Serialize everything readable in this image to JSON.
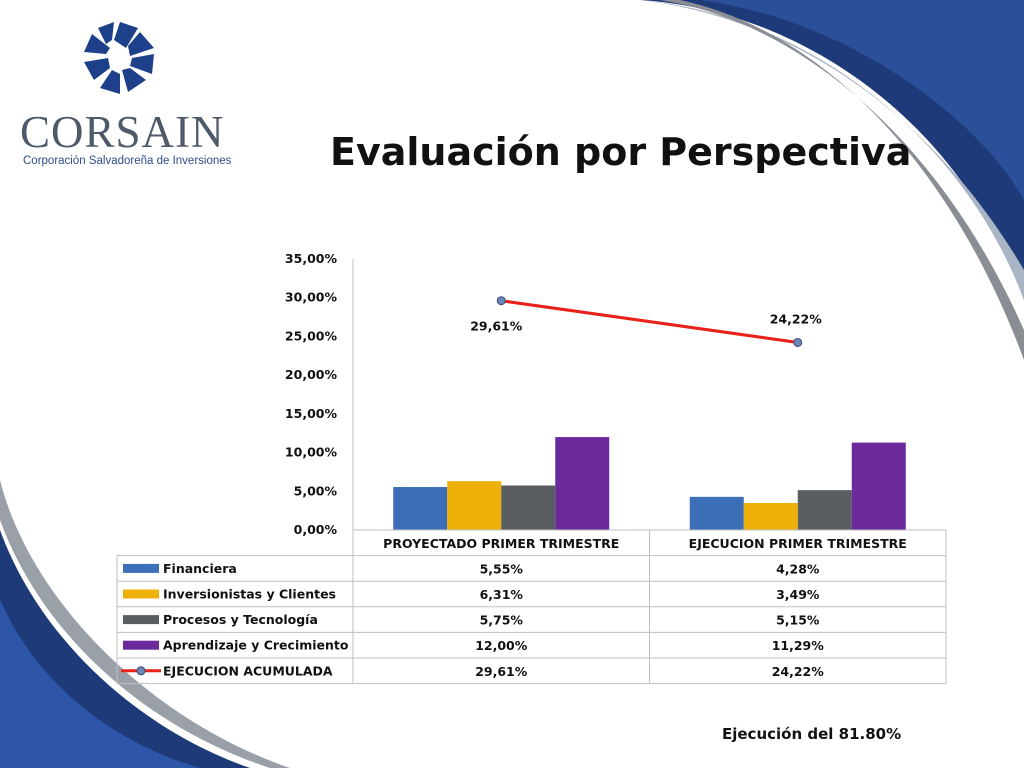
{
  "colors": {
    "financiera": "#3d6fb8",
    "inversionistas": "#f0b00a",
    "procesos": "#5a5e63",
    "aprendizaje": "#6b2a9c",
    "ejecucion_line": "#e8221a",
    "marker": "#6a86b8",
    "navy": "#1e3a78"
  },
  "logo": {
    "name": "CORSAIN",
    "subtitle": "Corporación Salvadoreña de Inversiones"
  },
  "slide": {
    "title": "Evaluación por Perspectiva",
    "footer_note": "Ejecución del 81.80%"
  },
  "chart_data": {
    "type": "bar",
    "title": "",
    "categories": [
      "PROYECTADO PRIMER TRIMESTRE",
      "EJECUCION PRIMER TRIMESTRE"
    ],
    "ylim": [
      0,
      35
    ],
    "yticks": [
      "0,00%",
      "5,00%",
      "10,00%",
      "15,00%",
      "20,00%",
      "25,00%",
      "30,00%",
      "35,00%"
    ],
    "series": [
      {
        "name": "Financiera",
        "kind": "bar",
        "values": [
          5.55,
          4.28
        ],
        "labels": [
          "5,55%",
          "4,28%"
        ]
      },
      {
        "name": "Inversionistas y Clientes",
        "kind": "bar",
        "values": [
          6.31,
          3.49
        ],
        "labels": [
          "6,31%",
          "3,49%"
        ]
      },
      {
        "name": "Procesos y Tecnología",
        "kind": "bar",
        "values": [
          5.75,
          5.15
        ],
        "labels": [
          "5,75%",
          "5,15%"
        ]
      },
      {
        "name": "Aprendizaje y Crecimiento",
        "kind": "bar",
        "values": [
          12.0,
          11.29
        ],
        "labels": [
          "12,00%",
          "11,29%"
        ]
      },
      {
        "name": "EJECUCION ACUMULADA",
        "kind": "line",
        "values": [
          29.61,
          24.22
        ],
        "labels": [
          "29,61%",
          "24,22%"
        ]
      }
    ],
    "grid": false,
    "legend": "data-table-below"
  }
}
